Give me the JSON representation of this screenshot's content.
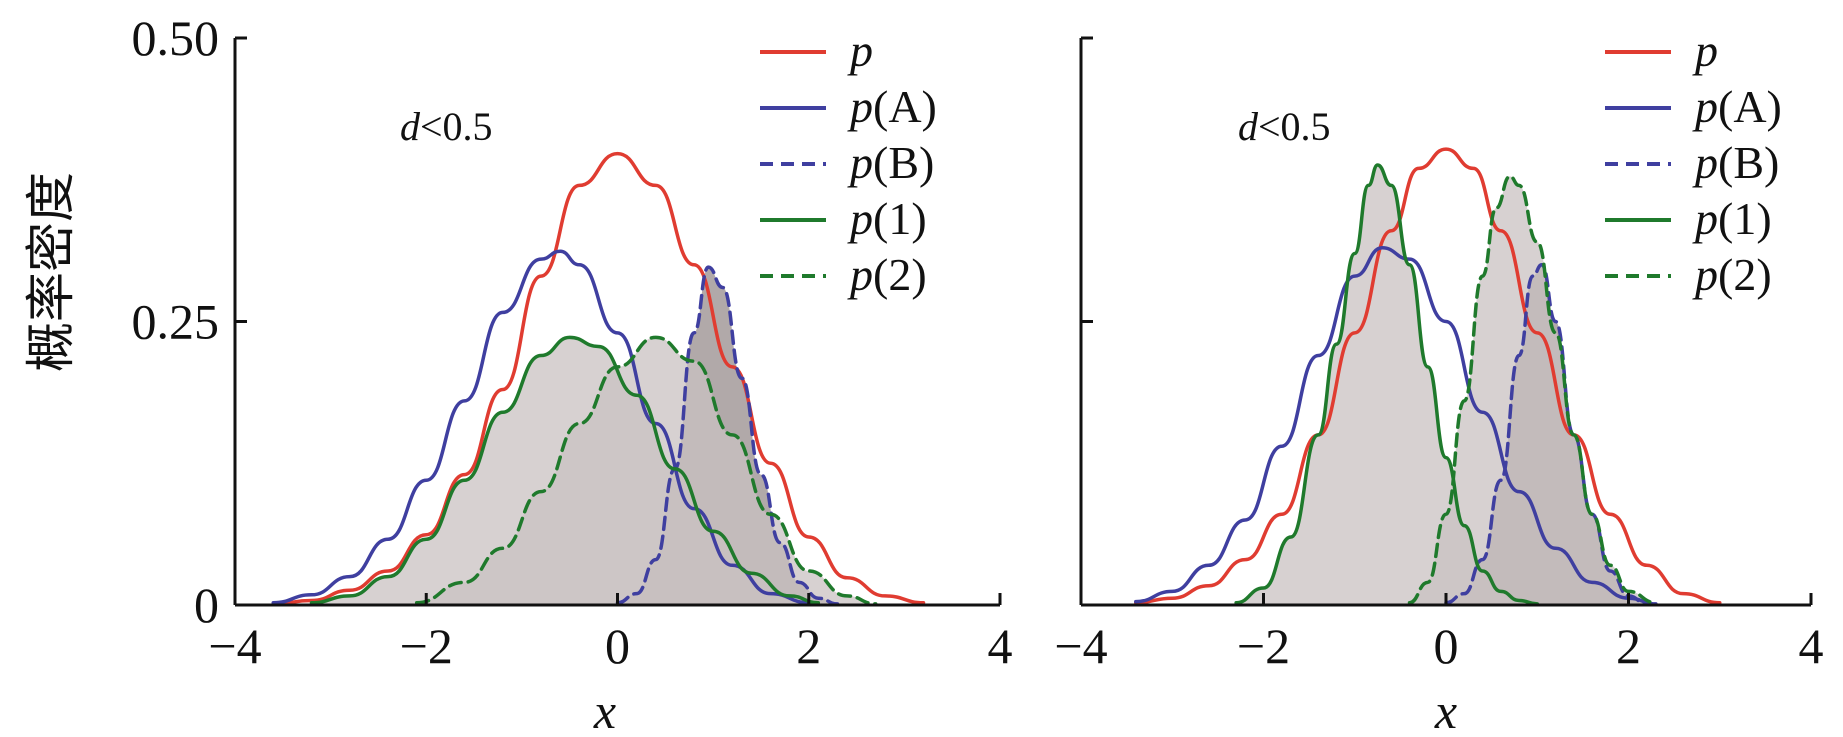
{
  "chart_data": {
    "shared": {
      "ylabel": "概率密度",
      "xlabel": "x",
      "xlim": [
        -4,
        4
      ],
      "ylim": [
        0,
        0.5
      ],
      "xticks": [
        -4,
        -2,
        0,
        2,
        4
      ],
      "xtick_labels": [
        "−4",
        "−2",
        "0",
        "2",
        "4"
      ],
      "yticks": [
        0,
        0.25,
        0.5
      ],
      "ytick_labels": [
        "0",
        "0.25",
        "0.50"
      ],
      "colors": {
        "red": "#e03c31",
        "blue": "#3f3fa0",
        "green": "#1f7a2c",
        "fill_light": "#c9c1c1",
        "fill_dark": "#a39a9a"
      },
      "legend": [
        {
          "prefix": "p",
          "suffix": "",
          "color": "#e03c31",
          "dash": "solid"
        },
        {
          "prefix": "p",
          "suffix": "(A)",
          "color": "#3f3fa0",
          "dash": "solid"
        },
        {
          "prefix": "p",
          "suffix": "(B)",
          "color": "#3f3fa0",
          "dash": "dashed"
        },
        {
          "prefix": "p",
          "suffix": "(1)",
          "color": "#1f7a2c",
          "dash": "solid"
        },
        {
          "prefix": "p",
          "suffix": "(2)",
          "color": "#1f7a2c",
          "dash": "dashed"
        }
      ]
    },
    "panels": [
      {
        "type": "line",
        "annotation": {
          "var": "d",
          "text": "<0.5"
        },
        "series": [
          {
            "name": "p",
            "color": "#e03c31",
            "dash": "solid",
            "fill": "none",
            "x": [
              -3.6,
              -3.2,
              -2.8,
              -2.4,
              -2.0,
              -1.6,
              -1.2,
              -0.8,
              -0.4,
              0,
              0.4,
              0.8,
              1.2,
              1.6,
              2.0,
              2.4,
              2.8,
              3.2
            ],
            "y": [
              0.001,
              0.004,
              0.013,
              0.03,
              0.062,
              0.115,
              0.19,
              0.29,
              0.37,
              0.398,
              0.37,
              0.3,
              0.21,
              0.125,
              0.06,
              0.024,
              0.008,
              0.002
            ]
          },
          {
            "name": "p(A)",
            "color": "#3f3fa0",
            "dash": "solid",
            "fill": "none",
            "x": [
              -3.6,
              -3.2,
              -2.8,
              -2.4,
              -2.0,
              -1.6,
              -1.2,
              -0.8,
              -0.6,
              -0.4,
              0,
              0.4,
              0.8,
              1.2,
              1.6,
              2.0
            ],
            "y": [
              0.002,
              0.009,
              0.025,
              0.058,
              0.11,
              0.18,
              0.258,
              0.305,
              0.312,
              0.3,
              0.24,
              0.16,
              0.085,
              0.035,
              0.01,
              0.002
            ]
          },
          {
            "name": "p(B)",
            "color": "#3f3fa0",
            "dash": "dashed",
            "fill": "dark",
            "x": [
              0,
              0.2,
              0.4,
              0.6,
              0.8,
              0.95,
              1.1,
              1.3,
              1.5,
              1.7,
              1.9,
              2.1,
              2.3
            ],
            "y": [
              0.002,
              0.01,
              0.04,
              0.12,
              0.24,
              0.298,
              0.28,
              0.2,
              0.115,
              0.055,
              0.02,
              0.006,
              0.001
            ]
          },
          {
            "name": "p(1)",
            "color": "#1f7a2c",
            "dash": "solid",
            "fill": "light",
            "x": [
              -3.2,
              -2.8,
              -2.4,
              -2.0,
              -1.6,
              -1.2,
              -0.8,
              -0.5,
              -0.2,
              0.2,
              0.6,
              1.0,
              1.4,
              1.8,
              2.1
            ],
            "y": [
              0.002,
              0.008,
              0.025,
              0.058,
              0.11,
              0.17,
              0.22,
              0.236,
              0.228,
              0.185,
              0.12,
              0.065,
              0.028,
              0.008,
              0.002
            ]
          },
          {
            "name": "p(2)",
            "color": "#1f7a2c",
            "dash": "dashed",
            "fill": "light",
            "x": [
              -2.1,
              -1.6,
              -1.2,
              -0.8,
              -0.4,
              0,
              0.4,
              0.8,
              1.2,
              1.6,
              2.0,
              2.4,
              2.7
            ],
            "y": [
              0.002,
              0.02,
              0.05,
              0.1,
              0.16,
              0.21,
              0.236,
              0.215,
              0.15,
              0.08,
              0.03,
              0.008,
              0.001
            ]
          }
        ]
      },
      {
        "type": "line",
        "annotation": {
          "var": "d",
          "text": "<0.5"
        },
        "series": [
          {
            "name": "p",
            "color": "#e03c31",
            "dash": "solid",
            "fill": "none",
            "x": [
              -3.4,
              -3.0,
              -2.6,
              -2.2,
              -1.8,
              -1.4,
              -1.0,
              -0.6,
              -0.3,
              0,
              0.3,
              0.6,
              1.0,
              1.4,
              1.8,
              2.2,
              2.6,
              3.0
            ],
            "y": [
              0.002,
              0.006,
              0.017,
              0.04,
              0.08,
              0.15,
              0.24,
              0.33,
              0.385,
              0.402,
              0.385,
              0.33,
              0.24,
              0.15,
              0.08,
              0.035,
              0.01,
              0.002
            ]
          },
          {
            "name": "p(A)",
            "color": "#3f3fa0",
            "dash": "solid",
            "fill": "none",
            "x": [
              -3.4,
              -3.0,
              -2.6,
              -2.2,
              -1.8,
              -1.4,
              -1.0,
              -0.7,
              -0.4,
              0,
              0.4,
              0.8,
              1.2,
              1.6,
              2.0,
              2.3
            ],
            "y": [
              0.003,
              0.012,
              0.035,
              0.075,
              0.14,
              0.22,
              0.29,
              0.315,
              0.305,
              0.25,
              0.17,
              0.1,
              0.05,
              0.02,
              0.006,
              0.001
            ]
          },
          {
            "name": "p(B)",
            "color": "#3f3fa0",
            "dash": "dashed",
            "fill": "dark",
            "x": [
              0,
              0.2,
              0.4,
              0.6,
              0.8,
              0.95,
              1.05,
              1.2,
              1.4,
              1.6,
              1.8,
              2.0,
              2.2
            ],
            "y": [
              0.002,
              0.01,
              0.04,
              0.11,
              0.22,
              0.29,
              0.3,
              0.25,
              0.15,
              0.08,
              0.03,
              0.008,
              0.001
            ]
          },
          {
            "name": "p(1)",
            "color": "#1f7a2c",
            "dash": "solid",
            "fill": "light",
            "x": [
              -2.3,
              -2.0,
              -1.7,
              -1.4,
              -1.2,
              -1.0,
              -0.85,
              -0.75,
              -0.6,
              -0.4,
              -0.2,
              0,
              0.2,
              0.4,
              0.6,
              0.8,
              1.0
            ],
            "y": [
              0.002,
              0.015,
              0.06,
              0.15,
              0.23,
              0.31,
              0.37,
              0.388,
              0.37,
              0.3,
              0.21,
              0.13,
              0.07,
              0.03,
              0.012,
              0.004,
              0.001
            ]
          },
          {
            "name": "p(2)",
            "color": "#1f7a2c",
            "dash": "dashed",
            "fill": "light",
            "x": [
              -0.4,
              -0.2,
              0,
              0.2,
              0.4,
              0.55,
              0.7,
              0.8,
              1.0,
              1.2,
              1.4,
              1.6,
              1.8,
              2.0,
              2.3
            ],
            "y": [
              0.002,
              0.02,
              0.08,
              0.18,
              0.29,
              0.35,
              0.378,
              0.37,
              0.32,
              0.24,
              0.15,
              0.08,
              0.035,
              0.012,
              0.002
            ]
          }
        ]
      }
    ]
  }
}
